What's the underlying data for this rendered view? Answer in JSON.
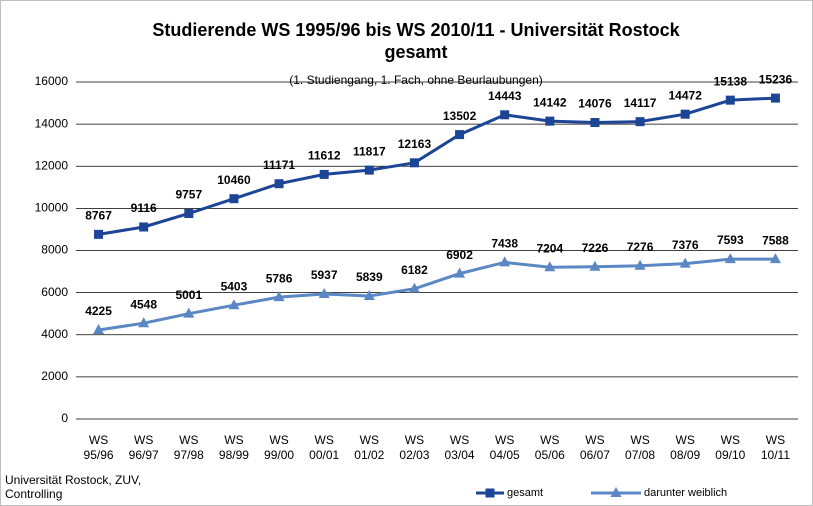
{
  "chart_data": {
    "type": "line",
    "title": "Studierende WS 1995/96 bis WS 2010/11 - Universität Rostock gesamt",
    "subtitle": "(1. Studiengang, 1. Fach, ohne Beurlaubungen)",
    "source": "Universität Rostock, ZUV, Controlling",
    "categories": [
      "WS 95/96",
      "WS 96/97",
      "WS 97/98",
      "WS 98/99",
      "WS 99/00",
      "WS 00/01",
      "WS 01/02",
      "WS 02/03",
      "WS 03/04",
      "WS 04/05",
      "WS 05/06",
      "WS 06/07",
      "WS 07/08",
      "WS 08/09",
      "WS 09/10",
      "WS 10/11"
    ],
    "series": [
      {
        "name": "gesamt",
        "color": "#1c4595",
        "marker": "square",
        "values": [
          8767,
          9116,
          9757,
          10460,
          11171,
          11612,
          11817,
          12163,
          13502,
          14443,
          14142,
          14076,
          14117,
          14472,
          15138,
          15236
        ]
      },
      {
        "name": "darunter weiblich",
        "color": "#5b87c4",
        "marker": "triangle",
        "values": [
          4225,
          4548,
          5001,
          5403,
          5786,
          5937,
          5839,
          6182,
          6902,
          7438,
          7204,
          7226,
          7276,
          7376,
          7593,
          7588
        ]
      }
    ],
    "ylim": [
      0,
      16000
    ],
    "yticks": [
      0,
      2000,
      4000,
      6000,
      8000,
      10000,
      12000,
      14000,
      16000
    ],
    "grid": true
  }
}
